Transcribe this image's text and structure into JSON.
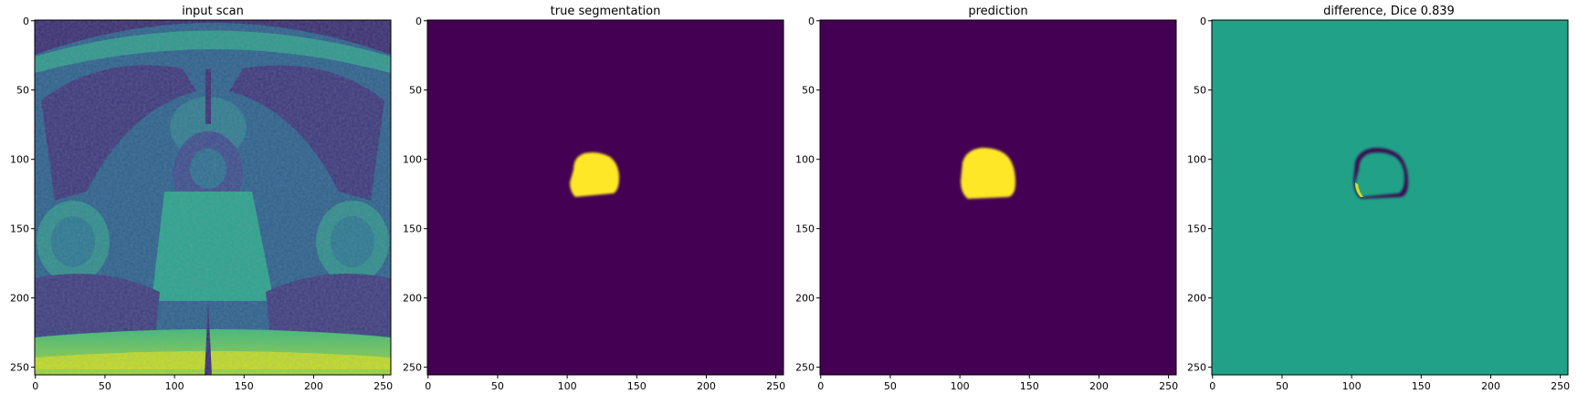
{
  "figure": {
    "panels": [
      {
        "title": "input scan",
        "kind": "mri-scan",
        "x_ticks": [
          "0",
          "50",
          "100",
          "150",
          "200",
          "250"
        ],
        "y_ticks": [
          "0",
          "50",
          "100",
          "150",
          "200",
          "250"
        ],
        "background_color": "#3b2a6e"
      },
      {
        "title": "true segmentation",
        "kind": "mask",
        "x_ticks": [
          "0",
          "50",
          "100",
          "150",
          "200",
          "250"
        ],
        "y_ticks": [
          "0",
          "50",
          "100",
          "150",
          "200",
          "250"
        ],
        "background_color": "#440154",
        "mask_color": "#fde725"
      },
      {
        "title": "prediction",
        "kind": "mask",
        "x_ticks": [
          "0",
          "50",
          "100",
          "150",
          "200",
          "250"
        ],
        "y_ticks": [
          "0",
          "50",
          "100",
          "150",
          "200",
          "250"
        ],
        "background_color": "#440154",
        "mask_color": "#fde725"
      },
      {
        "title": "difference, Dice 0.839",
        "kind": "difference",
        "x_ticks": [
          "0",
          "50",
          "100",
          "150",
          "200",
          "250"
        ],
        "y_ticks": [
          "0",
          "50",
          "100",
          "150",
          "200",
          "250"
        ],
        "background_color": "#21a187",
        "ring_color": "#3b0f52",
        "highlight_color": "#d8e219"
      }
    ],
    "axis_range": [
      0,
      255
    ],
    "colormap": "viridis"
  }
}
